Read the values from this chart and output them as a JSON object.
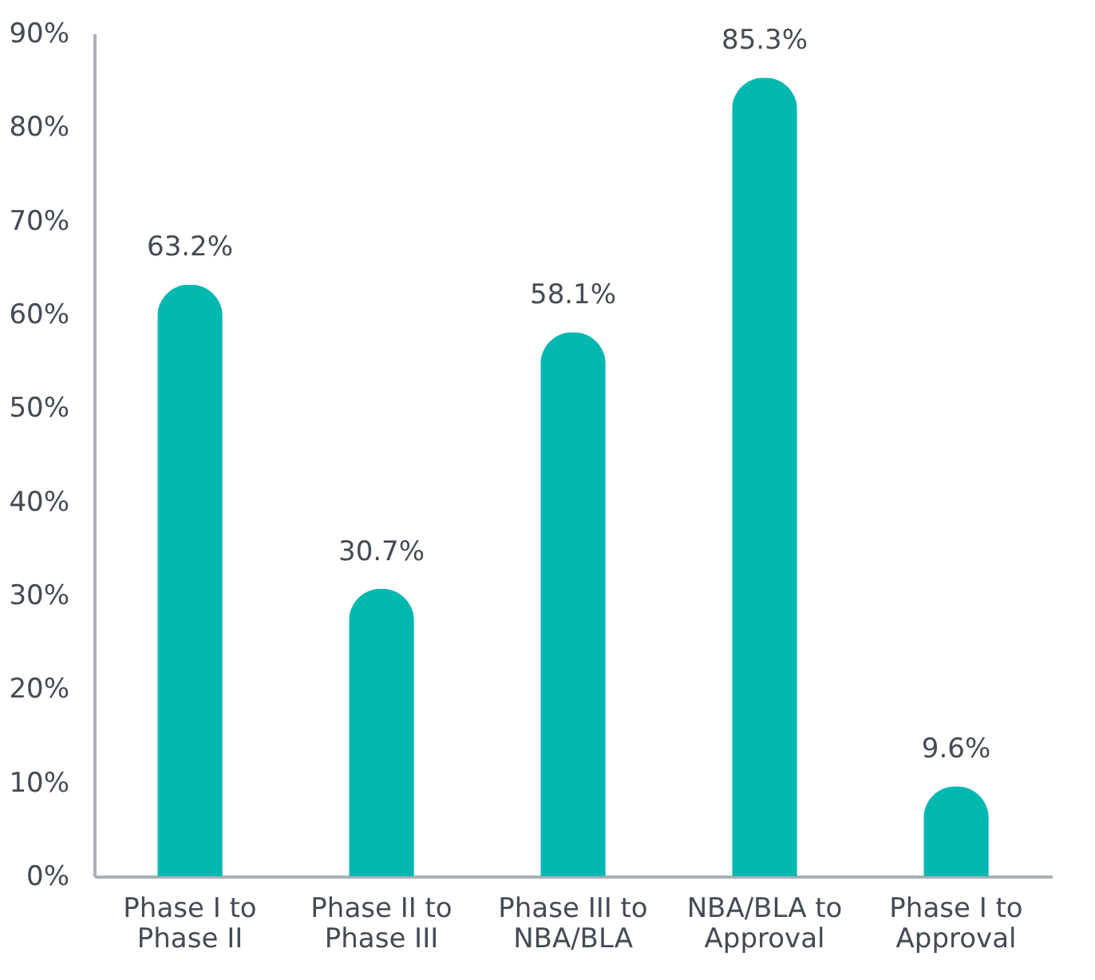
{
  "chart_data": {
    "type": "bar",
    "categories": [
      "Phase I to Phase II",
      "Phase II to Phase III",
      "Phase III to NBA/BLA",
      "NBA/BLA to Approval",
      "Phase I to Approval"
    ],
    "values": [
      63.2,
      30.7,
      58.1,
      85.3,
      9.6
    ],
    "color": "#00b8b0",
    "value_labels": [
      "63.2%",
      "30.7%",
      "58.1%",
      "85.3%",
      "9.6%"
    ],
    "ylim": [
      0,
      90
    ],
    "yticks": [
      {
        "value": 0,
        "label": "0%"
      },
      {
        "value": 10,
        "label": "10%"
      },
      {
        "value": 20,
        "label": "20%"
      },
      {
        "value": 30,
        "label": "30%"
      },
      {
        "value": 40,
        "label": "40%"
      },
      {
        "value": 50,
        "label": "50%"
      },
      {
        "value": 60,
        "label": "60%"
      },
      {
        "value": 70,
        "label": "70%"
      },
      {
        "value": 80,
        "label": "80%"
      },
      {
        "value": 90,
        "label": "90%"
      }
    ],
    "grid": false
  }
}
